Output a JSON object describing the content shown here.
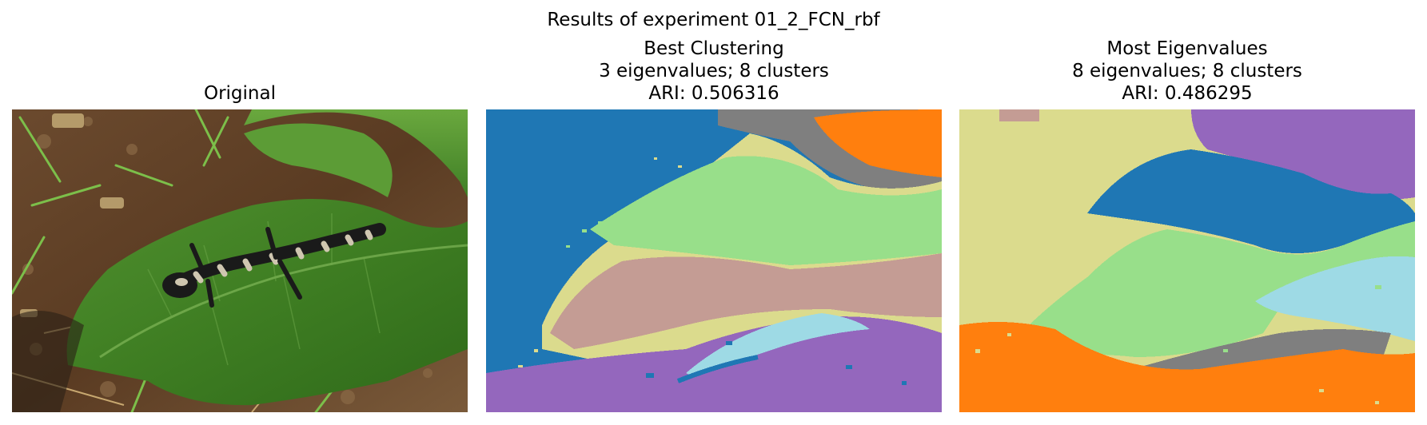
{
  "figure": {
    "title": "Results of experiment 01_2_FCN_rbf"
  },
  "panels": [
    {
      "title_lines": [
        "Original"
      ],
      "image": "salamander-on-leaf-photo"
    },
    {
      "title_lines": [
        "Best Clustering",
        "3 eigenvalues; 8 clusters",
        "ARI: 0.506316"
      ],
      "image": "segmentation-map"
    },
    {
      "title_lines": [
        "Most Eigenvalues",
        "8 eigenvalues; 8 clusters",
        "ARI: 0.486295"
      ],
      "image": "segmentation-map"
    }
  ],
  "palette": {
    "blue": "#1f77b4",
    "orange": "#ff7f0e",
    "gray": "#7f7f7f",
    "olive": "#dbdb8d",
    "light_green": "#98df8a",
    "tan": "#c49c94",
    "purple": "#9467bd",
    "light_blue": "#9edae5"
  }
}
